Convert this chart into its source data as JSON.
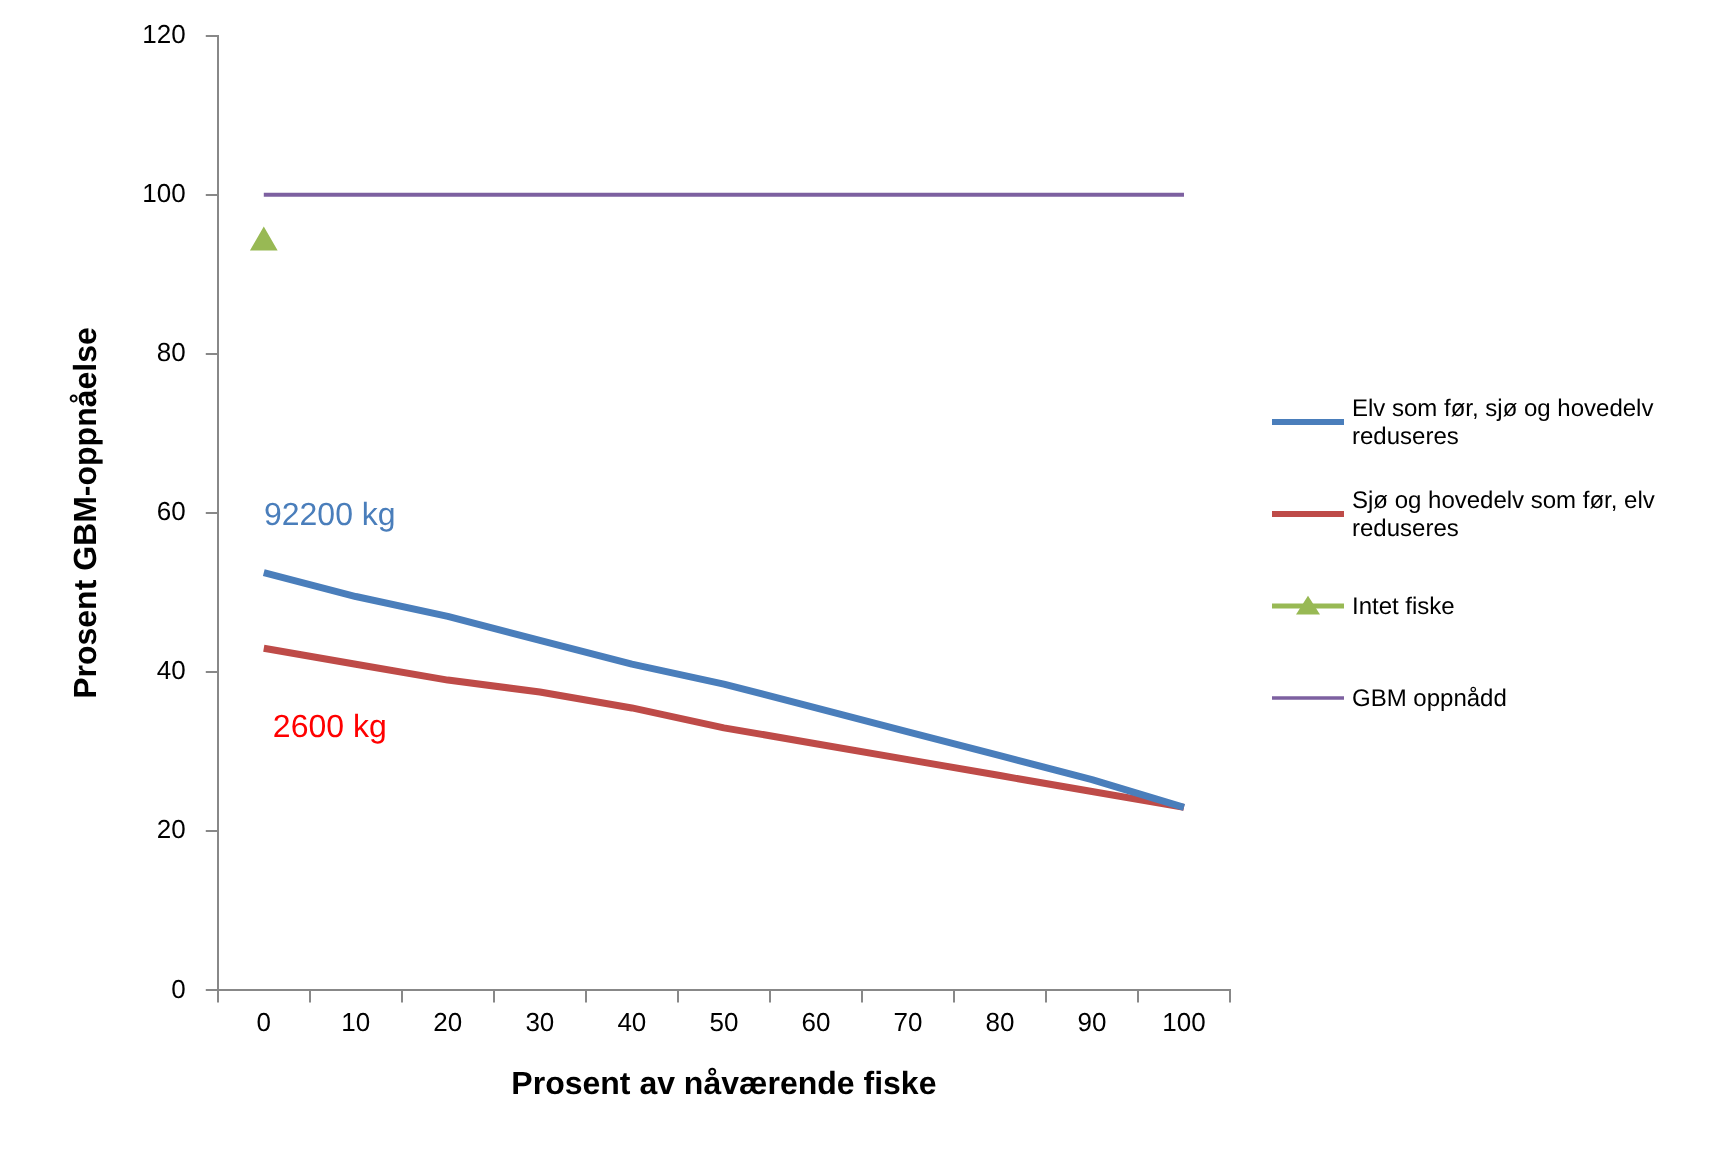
{
  "chart_data": {
    "type": "line",
    "xlabel": "Prosent av nåværende fiske",
    "ylabel": "Prosent GBM-oppnåelse",
    "categories": [
      "0",
      "10",
      "20",
      "30",
      "40",
      "50",
      "60",
      "70",
      "80",
      "90",
      "100"
    ],
    "ylim": [
      0,
      120
    ],
    "yticks": [
      0,
      20,
      40,
      60,
      80,
      100,
      120
    ],
    "grid": false,
    "legend": "right",
    "marker": "none",
    "series": [
      {
        "name": "Elv som før, sjø og hovedelv reduseres",
        "color": "#4a7ebb",
        "values": [
          52.5,
          49.5,
          47,
          44,
          41,
          38.5,
          35.5,
          32.5,
          29.5,
          26.5,
          23
        ]
      },
      {
        "name": "Sjø og hovedelv som før, elv reduseres",
        "color": "#be4b48",
        "values": [
          43,
          41,
          39,
          37.5,
          35.5,
          33,
          31,
          29,
          27,
          25,
          23
        ]
      },
      {
        "name": "Intet fiske",
        "type": "scatter",
        "marker": "triangle",
        "color": "#98b954",
        "values": [
          94,
          null,
          null,
          null,
          null,
          null,
          null,
          null,
          null,
          null,
          null
        ]
      },
      {
        "name": "GBM oppnådd",
        "color": "#7d60a0",
        "values": [
          100,
          100,
          100,
          100,
          100,
          100,
          100,
          100,
          100,
          100,
          100
        ]
      }
    ],
    "annotations": [
      "92200 kg",
      "2600 kg"
    ]
  }
}
